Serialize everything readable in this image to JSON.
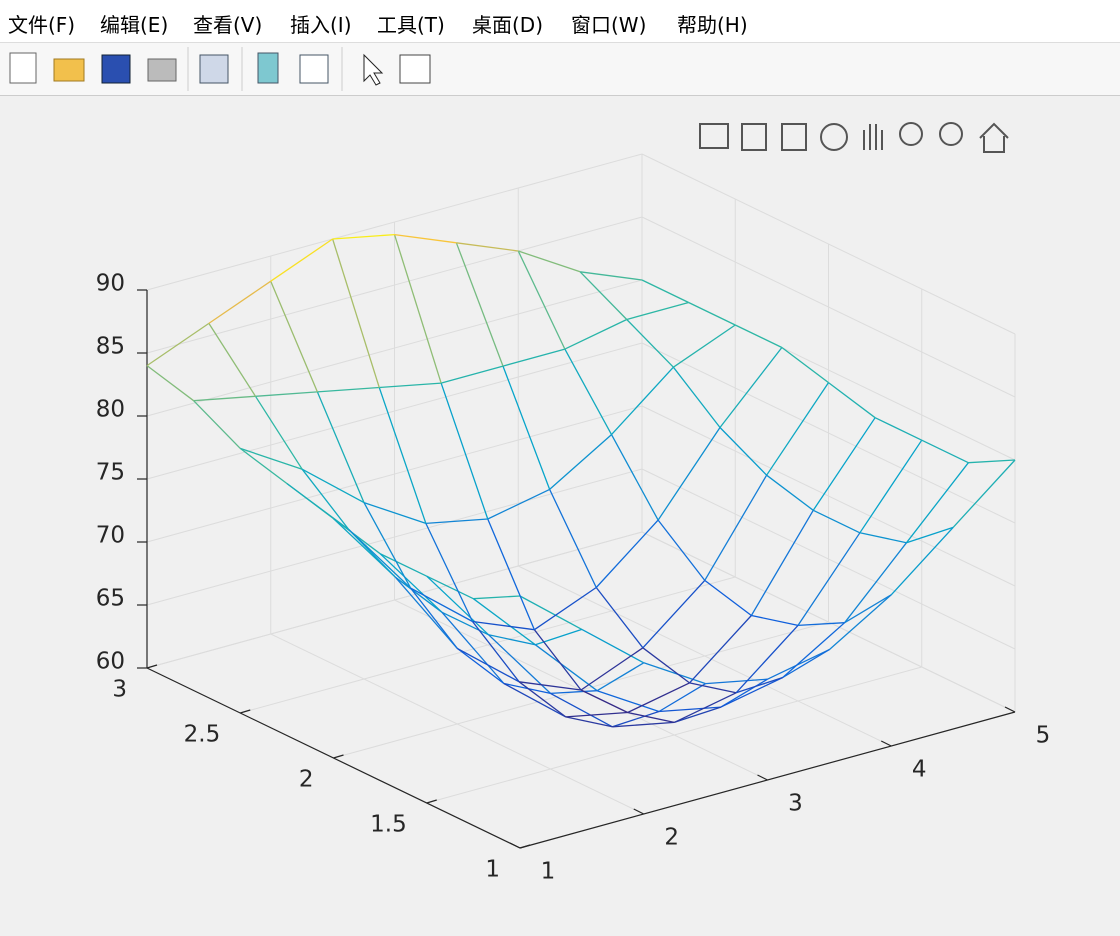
{
  "menu": [
    "文件(F)",
    "编辑(E)",
    "查看(V)",
    "插入(I)",
    "工具(T)",
    "桌面(D)",
    "窗口(W)",
    "帮助(H)"
  ],
  "chart_data": {
    "type": "mesh",
    "colormap": "parula",
    "grid": true,
    "x": [
      1,
      1.5,
      2,
      2.5,
      3,
      3.5,
      4,
      4.5,
      5
    ],
    "y": [
      1,
      1.25,
      1.5,
      1.75,
      2,
      2.25,
      2.5,
      2.75,
      3
    ],
    "z": [
      [
        80,
        76,
        72,
        69,
        68,
        69,
        72,
        76,
        80
      ],
      [
        78,
        73,
        68,
        65,
        64,
        65,
        68,
        73,
        78
      ],
      [
        78,
        72,
        66,
        62,
        61,
        62,
        66,
        72,
        78
      ],
      [
        78,
        72,
        65,
        61,
        60,
        61,
        65,
        72,
        78
      ],
      [
        79,
        73,
        66,
        62,
        60,
        62,
        66,
        73,
        79
      ],
      [
        80,
        75,
        69,
        65,
        63,
        65,
        69,
        75,
        80
      ],
      [
        81,
        78,
        74,
        71,
        70,
        71,
        74,
        78,
        80
      ],
      [
        83,
        82,
        81,
        80,
        79,
        79,
        79,
        80,
        80
      ],
      [
        84,
        86,
        88,
        90,
        89,
        87,
        85,
        82,
        80
      ]
    ],
    "xlim": [
      1,
      5
    ],
    "ylim": [
      1,
      3
    ],
    "zlim": [
      60,
      90
    ],
    "xticks": [
      1,
      2,
      3,
      4,
      5
    ],
    "yticks": [
      1,
      1.5,
      2,
      2.5,
      3
    ],
    "zticks": [
      60,
      65,
      70,
      75,
      80,
      85,
      90
    ]
  }
}
